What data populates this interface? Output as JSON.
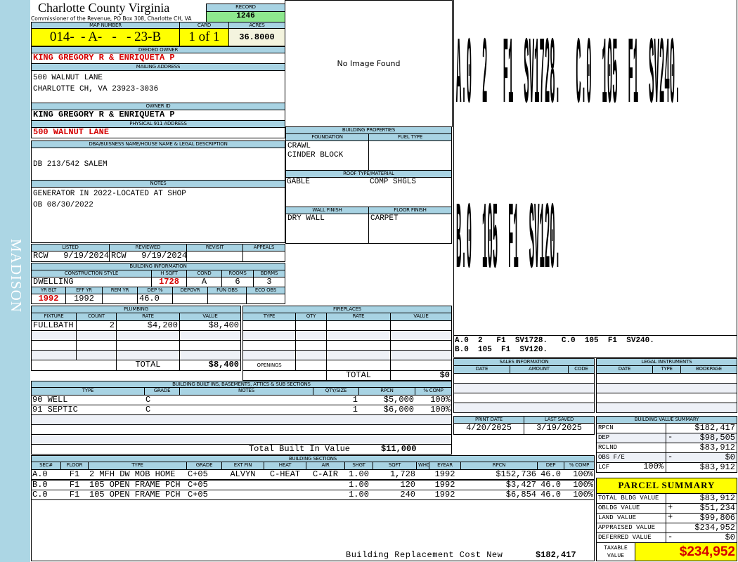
{
  "side_label": "MADISON",
  "header": {
    "county": "Charlotte County Virginia",
    "office": "Commissioner of the Revenue, PO Box 308, Charlotte CH, VA",
    "record_label": "RECORD",
    "record": "1246"
  },
  "parcel": {
    "map_number_label": "MAP NUMBER",
    "map_number": "014-  - A-   -   - 23-B",
    "card_label": "CARD",
    "card": "1 of 1",
    "acres_label": "ACRES",
    "acres": "36.8000"
  },
  "owner": {
    "deeded_label": "DEEDED OWNER",
    "deeded": "KING GREGORY R & ENRIQUETA P",
    "mailing_label": "MAILING ADDRESS",
    "mailing_lines": [
      "500 WALNUT LANE",
      "",
      "CHARLOTTE CH, VA 23923-3036"
    ],
    "owner_id_label": "OWNER ID",
    "owner_id": "KING GREGORY R & ENRIQUETA P",
    "physical_label": "PHYSICAL 911 ADDRESS",
    "physical": "500 WALNUT LANE"
  },
  "legal": {
    "label": "DBA/BUISNESS NAME/HOUSE NAME & LEGAL DESCRIPTION",
    "value": "DB 213/542 SALEM"
  },
  "notes": {
    "label": "NOTES",
    "lines": [
      "GENERATOR IN 2022-LOCATED AT SHOP",
      "OB 08/30/2022"
    ]
  },
  "review": {
    "headers": [
      "LISTED",
      "REVIEWED",
      "REVISIT",
      "APPEALS"
    ],
    "values": [
      "RCW   9/19/2024",
      "RCW   9/19/2024",
      "",
      ""
    ]
  },
  "building_info": {
    "title": "BUILDING INFORMATION",
    "headers1": [
      "CONSTRUCTION STYLE",
      "H SQFT",
      "COND",
      "ROOMS",
      "BDRMS"
    ],
    "values1": [
      "DWELLING",
      "1728",
      "A",
      "6",
      "3"
    ],
    "headers2": [
      "YR BLT",
      "EFF YR",
      "REM YR",
      "DEP %",
      "DEPOVR",
      "FUN OBS",
      "ECO OBS"
    ],
    "values2": [
      "1992",
      "1992",
      "",
      "46.0",
      "",
      "",
      ""
    ]
  },
  "image": {
    "text": "No Image Found"
  },
  "building_properties": {
    "title": "BUILDING PROPERTIES",
    "foundation_label": "FOUNDATION",
    "foundation": [
      "CRAWL",
      "CINDER BLOCK"
    ],
    "fuel_label": "FUEL TYPE",
    "fuel": [],
    "roof_label": "ROOF TYPE/MATERIAL",
    "roof_type": "GABLE",
    "roof_material": "COMP SHGLS",
    "wall_label": "WALL FINISH",
    "wall": "DRY WALL",
    "floor_label": "FLOOR FINISH",
    "floor": "CARPET"
  },
  "sketch": {
    "lines": [
      "A.0  2   F1  SV1728.   C.0  105  F1  SV240.",
      "B.0  105  F1  SV120."
    ]
  },
  "plumbing": {
    "title": "PLUMBING",
    "headers": [
      "FIXTURE",
      "COUNT",
      "RATE",
      "VALUE"
    ],
    "rows": [
      [
        "FULLBATH",
        "2",
        "$4,200",
        "$8,400"
      ]
    ],
    "total_label": "TOTAL",
    "total": "$8,400"
  },
  "fireplaces": {
    "title": "FIREPLACES",
    "headers": [
      "TYPE",
      "QTY",
      "RATE",
      "VALUE"
    ],
    "rows": [],
    "openings_label": "OPENINGS",
    "total_label": "TOTAL",
    "total": "$0"
  },
  "builtins": {
    "title": "BUILDING BUILT INS, BASEMENTS, ATTICS & SUB SECTIONS",
    "headers": [
      "TYPE",
      "GRADE",
      "NOTES",
      "QTY/SIZE",
      "RPCN",
      "% COMP"
    ],
    "rows": [
      [
        "90 WELL",
        "C",
        "",
        "1",
        "$5,000",
        "100%"
      ],
      [
        "91 SEPTIC",
        "C",
        "",
        "1",
        "$6,000",
        "100%"
      ]
    ],
    "total_label": "Total Built In Value",
    "total": "$11,000"
  },
  "sections": {
    "title": "BUILDING SECTIONS",
    "headers": [
      "SEC#",
      "FLOOR",
      "TYPE",
      "GRADE",
      "EXT FIN",
      "HEAT",
      "AIR",
      "SHGT",
      "SQFT",
      "WHGT",
      "EYEAR",
      "RPCN",
      "DEP",
      "% COMP"
    ],
    "rows": [
      [
        "A.0",
        "F1",
        "2 MFH DW MOB HOME",
        "C+05",
        "ALVYN",
        "C-HEAT",
        "C-AIR",
        "1.00",
        "1,728",
        "",
        "1992",
        "$152,736",
        "46.0",
        "100%"
      ],
      [
        "B.0",
        "F1",
        "105 OPEN FRAME PCH",
        "C+05",
        "",
        "",
        "",
        "1.00",
        "120",
        "",
        "1992",
        "$3,427",
        "46.0",
        "100%"
      ],
      [
        "C.0",
        "F1",
        "105 OPEN FRAME PCH",
        "C+05",
        "",
        "",
        "",
        "1.00",
        "240",
        "",
        "1992",
        "$6,854",
        "46.0",
        "100%"
      ]
    ],
    "footer_label": "Building Replacement Cost New",
    "footer_value": "$182,417"
  },
  "sales": {
    "title": "SALES INFORMATION",
    "headers": [
      "DATE",
      "AMOUNT",
      "CODE"
    ],
    "rows": []
  },
  "legal_instruments": {
    "title": "LEGAL INSTRUMENTS",
    "headers": [
      "DATE",
      "TYPE",
      "BOOKPAGE"
    ],
    "rows": []
  },
  "dates": {
    "print_label": "PRINT DATE",
    "print": "4/20/2025",
    "saved_label": "LAST SAVED",
    "saved": "3/19/2025"
  },
  "value_summary": {
    "title": "BUILDING VALUE SUMMARY",
    "rows": [
      {
        "label": "RPCN",
        "extra": "",
        "sign": "",
        "value": "$182,417"
      },
      {
        "label": "DEP",
        "extra": "",
        "sign": "-",
        "value": "$98,505"
      },
      {
        "label": "RCLND",
        "extra": "",
        "sign": "",
        "value": "$83,912"
      },
      {
        "label": "OBS F/E",
        "extra": "",
        "sign": "-",
        "value": "$0"
      },
      {
        "label": "LCF",
        "extra": "100%",
        "sign": "",
        "value": "$83,912"
      }
    ]
  },
  "parcel_summary": {
    "title": "PARCEL SUMMARY",
    "rows": [
      {
        "label": "TOTAL BLDG VALUE",
        "sign": "",
        "value": "$83,912"
      },
      {
        "label": "OBLDG VALUE",
        "sign": "+",
        "value": "$51,234"
      },
      {
        "label": "LAND VALUE",
        "sign": "+",
        "value": "$99,806"
      },
      {
        "label": "APPRAISED VALUE",
        "sign": "",
        "value": "$234,952"
      },
      {
        "label": "DEFERRED VALUE",
        "sign": "-",
        "value": "$0"
      }
    ],
    "taxable_label": [
      "TAXABLE",
      "VALUE"
    ],
    "taxable": "$234,952"
  },
  "colors": {
    "header": "#a8d3e3",
    "sidebar": "#acd6e4",
    "highlight": "#ffff00",
    "record": "#8ee88e",
    "emphasis": "#d40000"
  }
}
